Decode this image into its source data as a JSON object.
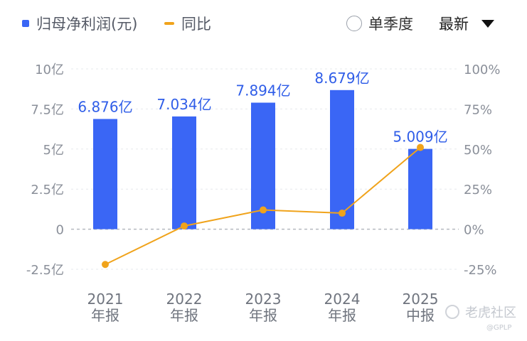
{
  "legend": {
    "bar_label": "归母净利润(元)",
    "line_label": "同比"
  },
  "controls": {
    "season_label": "单季度",
    "sort_label": "最新"
  },
  "watermark": {
    "brand": "老虎社区",
    "handle": "@GPLP"
  },
  "chart_data": {
    "type": "bar",
    "categories": [
      "2021\n年报",
      "2022\n年报",
      "2023\n年报",
      "2024\n年报",
      "2025\n中报"
    ],
    "series": [
      {
        "name": "归母净利润(元)",
        "type": "bar",
        "axis": "left",
        "values": [
          6.876,
          7.034,
          7.894,
          8.679,
          5.009
        ],
        "labels": [
          "6.876亿",
          "7.034亿",
          "7.894亿",
          "8.679亿",
          "5.009亿"
        ],
        "color": "#3a66f5"
      },
      {
        "name": "同比",
        "type": "line",
        "axis": "right",
        "values": [
          -22,
          2,
          12,
          10,
          51
        ],
        "color": "#f0a31b"
      }
    ],
    "y_left": {
      "range": [
        -2.5,
        10
      ],
      "ticks": [
        10,
        7.5,
        5,
        2.5,
        0,
        -2.5
      ],
      "tick_labels": [
        "10亿",
        "7.5亿",
        "5亿",
        "2.5亿",
        "0",
        "-2.5亿"
      ]
    },
    "y_right": {
      "range": [
        -25,
        100
      ],
      "ticks": [
        100,
        75,
        50,
        25,
        0,
        -25
      ],
      "tick_labels": [
        "100%",
        "75%",
        "50%",
        "25%",
        "0%",
        "-25%"
      ]
    },
    "grid": true,
    "legend_position": "top-left"
  },
  "colors": {
    "bar": "#3a66f5",
    "line": "#f0a31b",
    "axis_text": "#8a8f99",
    "grid": "#e6e8ec"
  }
}
